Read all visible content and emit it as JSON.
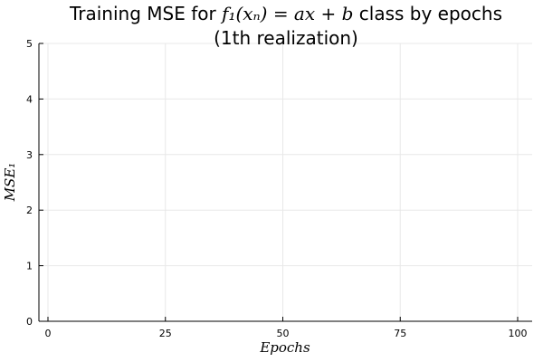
{
  "chart_data": {
    "type": "line",
    "title_prefix": "Training MSE for ",
    "title_math": "f₁(xₙ) = ax + b",
    "title_suffix": " class by epochs",
    "title_line2": "(1th realization)",
    "xlabel": "Epochs",
    "ylabel": "MSE₁",
    "xlim": [
      0,
      100
    ],
    "ylim": [
      0,
      5
    ],
    "xticks": [
      0,
      25,
      50,
      75,
      100
    ],
    "yticks": [
      0,
      1,
      2,
      3,
      4,
      5
    ],
    "grid": true,
    "legend": "none",
    "series": []
  }
}
